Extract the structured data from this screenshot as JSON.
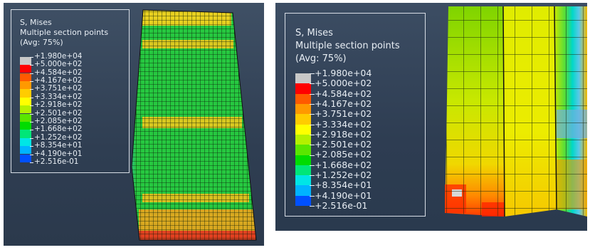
{
  "legend": {
    "variable": "S, Mises",
    "section": "Multiple section points",
    "averaging": "(Avg: 75%)",
    "values": [
      "+1.980e+04",
      "+5.000e+02",
      "+4.584e+02",
      "+4.167e+02",
      "+3.751e+02",
      "+3.334e+02",
      "+2.918e+02",
      "+2.501e+02",
      "+2.085e+02",
      "+1.668e+02",
      "+1.252e+02",
      "+8.354e+01",
      "+4.190e+01",
      "+2.516e-01"
    ],
    "colors": [
      "#c8c8c8",
      "#ff0000",
      "#ff5a00",
      "#ff9900",
      "#ffcc00",
      "#ffff00",
      "#b4f000",
      "#5ae600",
      "#00dc00",
      "#00e678",
      "#00e6e6",
      "#00b4ff",
      "#0050ff",
      "#0000ff"
    ]
  }
}
